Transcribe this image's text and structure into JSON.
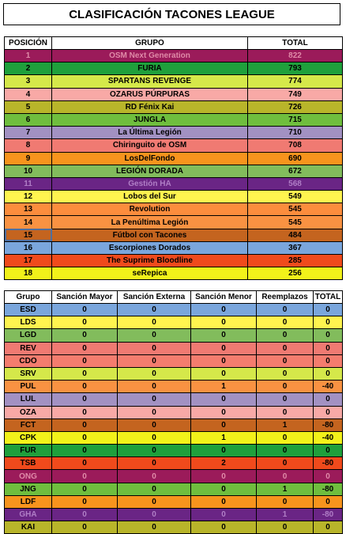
{
  "title": "CLASIFICACIÓN TACONES LEAGUE",
  "standings": {
    "headers": [
      "POSICIÓN",
      "GRUPO",
      "TOTAL"
    ],
    "rows": [
      {
        "pos": "1",
        "group": "OSM Next Generation",
        "total": "822",
        "bg": "#9b1b5a",
        "fg": "#e08aa8"
      },
      {
        "pos": "2",
        "group": "FURIA",
        "total": "793",
        "bg": "#1fa03c",
        "fg": "#000000"
      },
      {
        "pos": "3",
        "group": "SPARTANS REVENGE",
        "total": "774",
        "bg": "#d5e84a",
        "fg": "#000000"
      },
      {
        "pos": "4",
        "group": "OZARUS PÚRPURAS",
        "total": "749",
        "bg": "#f8a9a6",
        "fg": "#000000"
      },
      {
        "pos": "5",
        "group": "RD Fénix Kai",
        "total": "726",
        "bg": "#b8b52a",
        "fg": "#000000"
      },
      {
        "pos": "6",
        "group": "JUNGLA",
        "total": "715",
        "bg": "#6fbe3e",
        "fg": "#000000"
      },
      {
        "pos": "7",
        "group": "La Última Legión",
        "total": "710",
        "bg": "#a291c2",
        "fg": "#000000"
      },
      {
        "pos": "8",
        "group": "Chiringuito de OSM",
        "total": "708",
        "bg": "#f07a72",
        "fg": "#000000"
      },
      {
        "pos": "9",
        "group": "LosDelFondo",
        "total": "690",
        "bg": "#f7941d",
        "fg": "#000000"
      },
      {
        "pos": "10",
        "group": "LEGIÓN DORADA",
        "total": "672",
        "bg": "#82bc5c",
        "fg": "#000000"
      },
      {
        "pos": "11",
        "group": "Gestión HA",
        "total": "568",
        "bg": "#6a2585",
        "fg": "#b07ec6"
      },
      {
        "pos": "12",
        "group": "Lobos del Sur",
        "total": "549",
        "bg": "#fff44f",
        "fg": "#000000"
      },
      {
        "pos": "13",
        "group": "Revolution",
        "total": "545",
        "bg": "#fc8d3d",
        "fg": "#000000"
      },
      {
        "pos": "14",
        "group": "La Penúltima Legión",
        "total": "545",
        "bg": "#f99242",
        "fg": "#000000"
      },
      {
        "pos": "15",
        "group": "Fútbol con Tacones",
        "total": "484",
        "bg": "#c4641f",
        "fg": "#000000"
      },
      {
        "pos": "16",
        "group": "Escorpiones Dorados",
        "total": "367",
        "bg": "#7aa6dc",
        "fg": "#000000"
      },
      {
        "pos": "17",
        "group": "The Suprime Bloodline",
        "total": "285",
        "bg": "#f04a1c",
        "fg": "#000000"
      },
      {
        "pos": "18",
        "group": "seRepica",
        "total": "256",
        "bg": "#f2f21a",
        "fg": "#000000"
      }
    ]
  },
  "penalties": {
    "headers": [
      "Grupo",
      "Sanción Mayor",
      "Sanción Externa",
      "Sanción Menor",
      "Reemplazos",
      "TOTAL"
    ],
    "rows": [
      {
        "g": "ESD",
        "a": "0",
        "b": "0",
        "c": "0",
        "d": "0",
        "t": "0",
        "bg": "#7aa6dc",
        "fg": "#000000"
      },
      {
        "g": "LDS",
        "a": "0",
        "b": "0",
        "c": "0",
        "d": "0",
        "t": "0",
        "bg": "#fff44f",
        "fg": "#000000"
      },
      {
        "g": "LGD",
        "a": "0",
        "b": "0",
        "c": "0",
        "d": "0",
        "t": "0",
        "bg": "#82bc5c",
        "fg": "#000000"
      },
      {
        "g": "REV",
        "a": "0",
        "b": "0",
        "c": "0",
        "d": "0",
        "t": "0",
        "bg": "#f07a72",
        "fg": "#000000"
      },
      {
        "g": "CDO",
        "a": "0",
        "b": "0",
        "c": "0",
        "d": "0",
        "t": "0",
        "bg": "#f47c6e",
        "fg": "#000000"
      },
      {
        "g": "SRV",
        "a": "0",
        "b": "0",
        "c": "0",
        "d": "0",
        "t": "0",
        "bg": "#d5e84a",
        "fg": "#000000"
      },
      {
        "g": "PUL",
        "a": "0",
        "b": "0",
        "c": "1",
        "d": "0",
        "t": "-40",
        "bg": "#f99242",
        "fg": "#000000"
      },
      {
        "g": "LUL",
        "a": "0",
        "b": "0",
        "c": "0",
        "d": "0",
        "t": "0",
        "bg": "#a291c2",
        "fg": "#000000"
      },
      {
        "g": "OZA",
        "a": "0",
        "b": "0",
        "c": "0",
        "d": "0",
        "t": "0",
        "bg": "#f8a9a6",
        "fg": "#000000"
      },
      {
        "g": "FCT",
        "a": "0",
        "b": "0",
        "c": "0",
        "d": "1",
        "t": "-80",
        "bg": "#c4641f",
        "fg": "#000000"
      },
      {
        "g": "CPK",
        "a": "0",
        "b": "0",
        "c": "1",
        "d": "0",
        "t": "-40",
        "bg": "#f2f21a",
        "fg": "#000000"
      },
      {
        "g": "FUR",
        "a": "0",
        "b": "0",
        "c": "0",
        "d": "0",
        "t": "0",
        "bg": "#1fa03c",
        "fg": "#000000"
      },
      {
        "g": "TSB",
        "a": "0",
        "b": "0",
        "c": "2",
        "d": "0",
        "t": "-80",
        "bg": "#f04a1c",
        "fg": "#000000"
      },
      {
        "g": "ONG",
        "a": "0",
        "b": "0",
        "c": "0",
        "d": "0",
        "t": "0",
        "bg": "#9b1b5a",
        "fg": "#e08aa8"
      },
      {
        "g": "JNG",
        "a": "0",
        "b": "0",
        "c": "0",
        "d": "1",
        "t": "-80",
        "bg": "#6fbe3e",
        "fg": "#000000"
      },
      {
        "g": "LDF",
        "a": "0",
        "b": "0",
        "c": "0",
        "d": "0",
        "t": "0",
        "bg": "#f7941d",
        "fg": "#000000"
      },
      {
        "g": "GHA",
        "a": "0",
        "b": "0",
        "c": "0",
        "d": "1",
        "t": "-80",
        "bg": "#6a2585",
        "fg": "#b07ec6"
      },
      {
        "g": "KAI",
        "a": "0",
        "b": "0",
        "c": "0",
        "d": "0",
        "t": "0",
        "bg": "#b8b52a",
        "fg": "#000000"
      }
    ]
  }
}
